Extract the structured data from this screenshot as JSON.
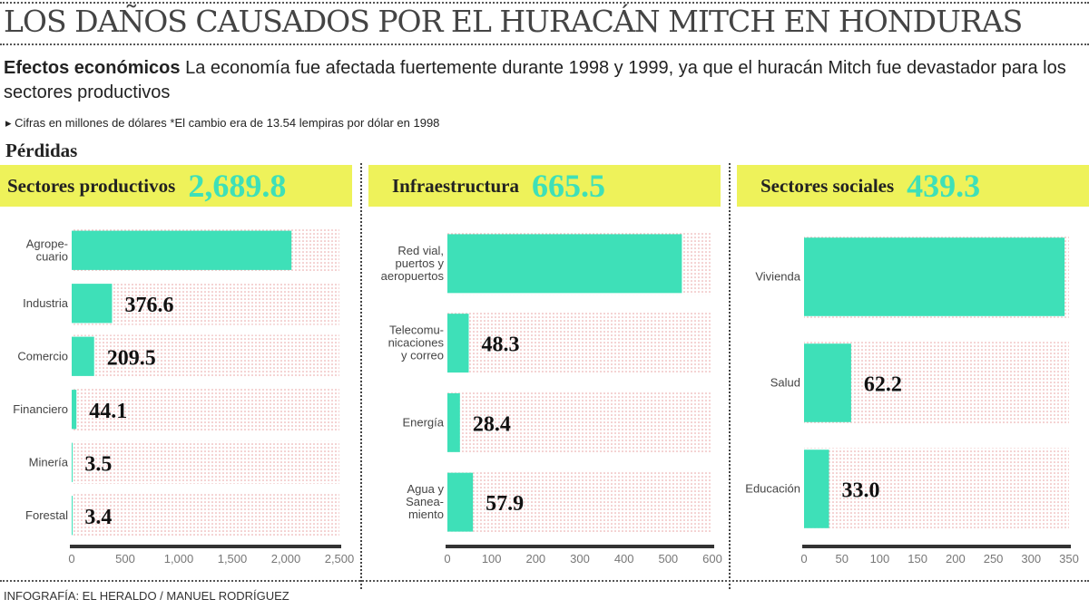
{
  "title": "LOS DAÑOS CAUSADOS POR EL HURACÁN MITCH EN HONDURAS",
  "lead_bold": "Efectos económicos",
  "lead_text": " La economía fue afectada fuertemente durante 1998 y 1999, ya que el huracán Mitch fue devastador para los sectores productivos",
  "note": "▸ Cifras en millones de dólares  *El cambio era de 13.54 lempiras por dólar en 1998",
  "section": "Pérdidas",
  "credit": "INFOGRAFÍA: EL HERALDO / MANUEL RODRÍGUEZ",
  "colors": {
    "bar": "#3ee0b8",
    "header": "#eef25a",
    "background_dots": "#e8a0a0"
  },
  "chart_data": [
    {
      "type": "bar",
      "orientation": "horizontal",
      "title": "Sectores productivos",
      "total": "2,689.8",
      "categories": [
        "Agrope-\ncuario",
        "Industria",
        "Comercio",
        "Financiero",
        "Minería",
        "Forestal"
      ],
      "values": [
        2052.7,
        376.6,
        209.5,
        44.1,
        3.5,
        3.4
      ],
      "data_labels": [
        "",
        "376.6",
        "209.5",
        "44.1",
        "3.5",
        "3.4"
      ],
      "xlim": [
        0,
        2500
      ],
      "ticks": [
        "0",
        "500",
        "1,000",
        "1,500",
        "2,000",
        "2,500"
      ]
    },
    {
      "type": "bar",
      "orientation": "horizontal",
      "title": "Infraestructura",
      "total": "665.5",
      "categories": [
        "Red vial,\npuertos y\naeropuertos",
        "Telecomu-\nnicaciones\ny correo",
        "Energía",
        "Agua y\nSanea-\nmiento"
      ],
      "values": [
        530.9,
        48.3,
        28.4,
        57.9
      ],
      "data_labels": [
        "",
        "48.3",
        "28.4",
        "57.9"
      ],
      "xlim": [
        0,
        600
      ],
      "ticks": [
        "0",
        "100",
        "200",
        "300",
        "400",
        "500",
        "600"
      ]
    },
    {
      "type": "bar",
      "orientation": "horizontal",
      "title": "Sectores sociales",
      "total": "439.3",
      "categories": [
        "Vivienda",
        "Salud",
        "Educación"
      ],
      "values": [
        344.1,
        62.2,
        33.0
      ],
      "data_labels": [
        "",
        "62.2",
        "33.0"
      ],
      "xlim": [
        0,
        350
      ],
      "ticks": [
        "0",
        "50",
        "100",
        "150",
        "200",
        "250",
        "300",
        "350"
      ]
    }
  ]
}
